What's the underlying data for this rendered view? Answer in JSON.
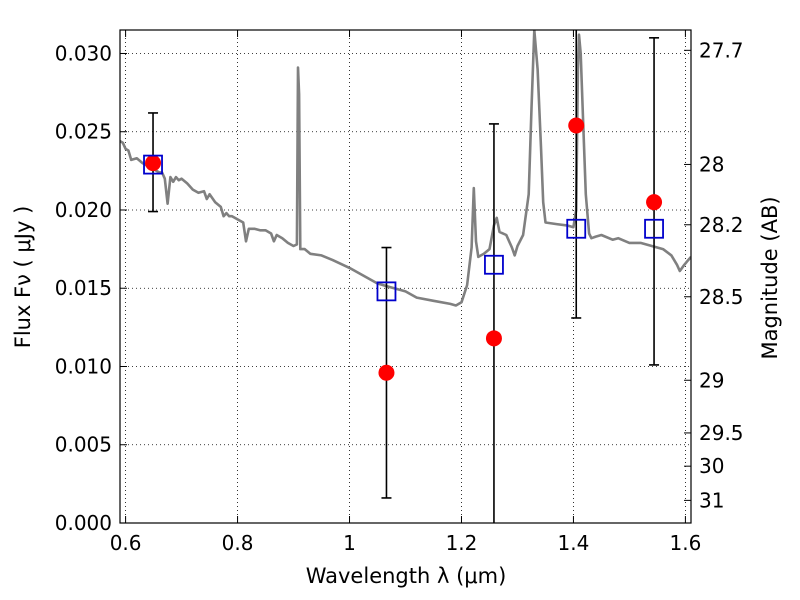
{
  "chart_data": {
    "type": "scatter",
    "title": "",
    "xlabel": "Wavelength  λ (μm)",
    "ylabel": "Flux  Fν  ( μJy )",
    "ylabel_right": "Magnitude (AB)",
    "xlim": [
      0.59,
      1.61
    ],
    "ylim": [
      0.0,
      0.0315
    ],
    "grid": true,
    "x_ticks": [
      {
        "value": 0.6,
        "label": "0.6"
      },
      {
        "value": 0.8,
        "label": "0.8"
      },
      {
        "value": 1.0,
        "label": "1"
      },
      {
        "value": 1.2,
        "label": "1.2"
      },
      {
        "value": 1.4,
        "label": "1.4"
      },
      {
        "value": 1.6,
        "label": "1.6"
      }
    ],
    "y_ticks": [
      {
        "value": 0.0,
        "label": "0.000"
      },
      {
        "value": 0.005,
        "label": "0.005"
      },
      {
        "value": 0.01,
        "label": "0.010"
      },
      {
        "value": 0.015,
        "label": "0.015"
      },
      {
        "value": 0.02,
        "label": "0.020"
      },
      {
        "value": 0.025,
        "label": "0.025"
      },
      {
        "value": 0.03,
        "label": "0.030"
      }
    ],
    "right_ticks": [
      {
        "mag": 27.7,
        "label": "27.7"
      },
      {
        "mag": 28.0,
        "label": "28"
      },
      {
        "mag": 28.2,
        "label": "28.2"
      },
      {
        "mag": 28.5,
        "label": "28.5"
      },
      {
        "mag": 29.0,
        "label": "29"
      },
      {
        "mag": 29.5,
        "label": "29.5"
      },
      {
        "mag": 30.0,
        "label": "30"
      },
      {
        "mag": 31.0,
        "label": "31"
      }
    ],
    "series": [
      {
        "kind": "model-spectrum-line",
        "color": "#808080",
        "points": [
          [
            0.59,
            0.0244
          ],
          [
            0.595,
            0.0243
          ],
          [
            0.6,
            0.0239
          ],
          [
            0.605,
            0.0238
          ],
          [
            0.61,
            0.0232
          ],
          [
            0.62,
            0.0233
          ],
          [
            0.63,
            0.023
          ],
          [
            0.64,
            0.0228
          ],
          [
            0.65,
            0.0226
          ],
          [
            0.66,
            0.0224
          ],
          [
            0.665,
            0.0224
          ],
          [
            0.67,
            0.022
          ],
          [
            0.675,
            0.0204
          ],
          [
            0.68,
            0.0221
          ],
          [
            0.685,
            0.0218
          ],
          [
            0.69,
            0.0221
          ],
          [
            0.695,
            0.0219
          ],
          [
            0.7,
            0.022
          ],
          [
            0.71,
            0.0217
          ],
          [
            0.72,
            0.0213
          ],
          [
            0.73,
            0.0211
          ],
          [
            0.74,
            0.0212
          ],
          [
            0.745,
            0.0207
          ],
          [
            0.75,
            0.021
          ],
          [
            0.76,
            0.0205
          ],
          [
            0.77,
            0.0202
          ],
          [
            0.775,
            0.0196
          ],
          [
            0.78,
            0.0198
          ],
          [
            0.785,
            0.0196
          ],
          [
            0.79,
            0.0196
          ],
          [
            0.8,
            0.0194
          ],
          [
            0.81,
            0.0192
          ],
          [
            0.815,
            0.018
          ],
          [
            0.82,
            0.0188
          ],
          [
            0.83,
            0.0188
          ],
          [
            0.84,
            0.0187
          ],
          [
            0.85,
            0.0187
          ],
          [
            0.86,
            0.0185
          ],
          [
            0.865,
            0.018
          ],
          [
            0.87,
            0.0184
          ],
          [
            0.88,
            0.0182
          ],
          [
            0.89,
            0.0179
          ],
          [
            0.9,
            0.0177
          ],
          [
            0.906,
            0.0178
          ],
          [
            0.908,
            0.0291
          ],
          [
            0.91,
            0.0274
          ],
          [
            0.912,
            0.0175
          ],
          [
            0.92,
            0.0175
          ],
          [
            0.93,
            0.0172
          ],
          [
            0.95,
            0.0171
          ],
          [
            0.97,
            0.0168
          ],
          [
            1.0,
            0.0163
          ],
          [
            1.03,
            0.0157
          ],
          [
            1.05,
            0.0153
          ],
          [
            1.07,
            0.0151
          ],
          [
            1.1,
            0.0148
          ],
          [
            1.12,
            0.0144
          ],
          [
            1.15,
            0.0142
          ],
          [
            1.18,
            0.014
          ],
          [
            1.19,
            0.0139
          ],
          [
            1.2,
            0.0141
          ],
          [
            1.21,
            0.0152
          ],
          [
            1.218,
            0.0176
          ],
          [
            1.222,
            0.0214
          ],
          [
            1.226,
            0.018
          ],
          [
            1.23,
            0.017
          ],
          [
            1.24,
            0.0172
          ],
          [
            1.25,
            0.0175
          ],
          [
            1.258,
            0.019
          ],
          [
            1.263,
            0.0195
          ],
          [
            1.268,
            0.0186
          ],
          [
            1.28,
            0.0184
          ],
          [
            1.29,
            0.0176
          ],
          [
            1.295,
            0.0171
          ],
          [
            1.3,
            0.0177
          ],
          [
            1.31,
            0.0184
          ],
          [
            1.32,
            0.021
          ],
          [
            1.325,
            0.0265
          ],
          [
            1.33,
            0.0315
          ],
          [
            1.336,
            0.029
          ],
          [
            1.342,
            0.024
          ],
          [
            1.346,
            0.0205
          ],
          [
            1.35,
            0.0192
          ],
          [
            1.37,
            0.0191
          ],
          [
            1.39,
            0.019
          ],
          [
            1.4,
            0.0189
          ],
          [
            1.405,
            0.02
          ],
          [
            1.408,
            0.029
          ],
          [
            1.41,
            0.0312
          ],
          [
            1.413,
            0.03
          ],
          [
            1.418,
            0.025
          ],
          [
            1.422,
            0.021
          ],
          [
            1.428,
            0.0185
          ],
          [
            1.432,
            0.0182
          ],
          [
            1.44,
            0.0183
          ],
          [
            1.45,
            0.0184
          ],
          [
            1.47,
            0.0181
          ],
          [
            1.48,
            0.0182
          ],
          [
            1.5,
            0.0179
          ],
          [
            1.52,
            0.0179
          ],
          [
            1.54,
            0.0177
          ],
          [
            1.56,
            0.0175
          ],
          [
            1.575,
            0.0171
          ],
          [
            1.585,
            0.0165
          ],
          [
            1.59,
            0.0161
          ],
          [
            1.598,
            0.0165
          ],
          [
            1.605,
            0.0168
          ],
          [
            1.61,
            0.017
          ]
        ]
      },
      {
        "kind": "observed-flux",
        "color": "#ff0000",
        "points": [
          {
            "x": 0.649,
            "y": 0.023,
            "yerr_low": 0.0199,
            "yerr_high": 0.0262
          },
          {
            "x": 1.066,
            "y": 0.0096,
            "yerr_low": 0.0016,
            "yerr_high": 0.0176
          },
          {
            "x": 1.258,
            "y": 0.0118,
            "yerr_low": -0.001,
            "yerr_high": 0.0255
          },
          {
            "x": 1.405,
            "y": 0.0254,
            "yerr_low": 0.0131,
            "yerr_high": 0.032
          },
          {
            "x": 1.544,
            "y": 0.0205,
            "yerr_low": 0.0101,
            "yerr_high": 0.031
          }
        ]
      },
      {
        "kind": "model-band-flux",
        "color": "#0000cc",
        "points": [
          {
            "x": 0.649,
            "y": 0.0229
          },
          {
            "x": 1.066,
            "y": 0.0148
          },
          {
            "x": 1.258,
            "y": 0.0165
          },
          {
            "x": 1.405,
            "y": 0.0188
          },
          {
            "x": 1.544,
            "y": 0.0188
          }
        ]
      }
    ]
  }
}
